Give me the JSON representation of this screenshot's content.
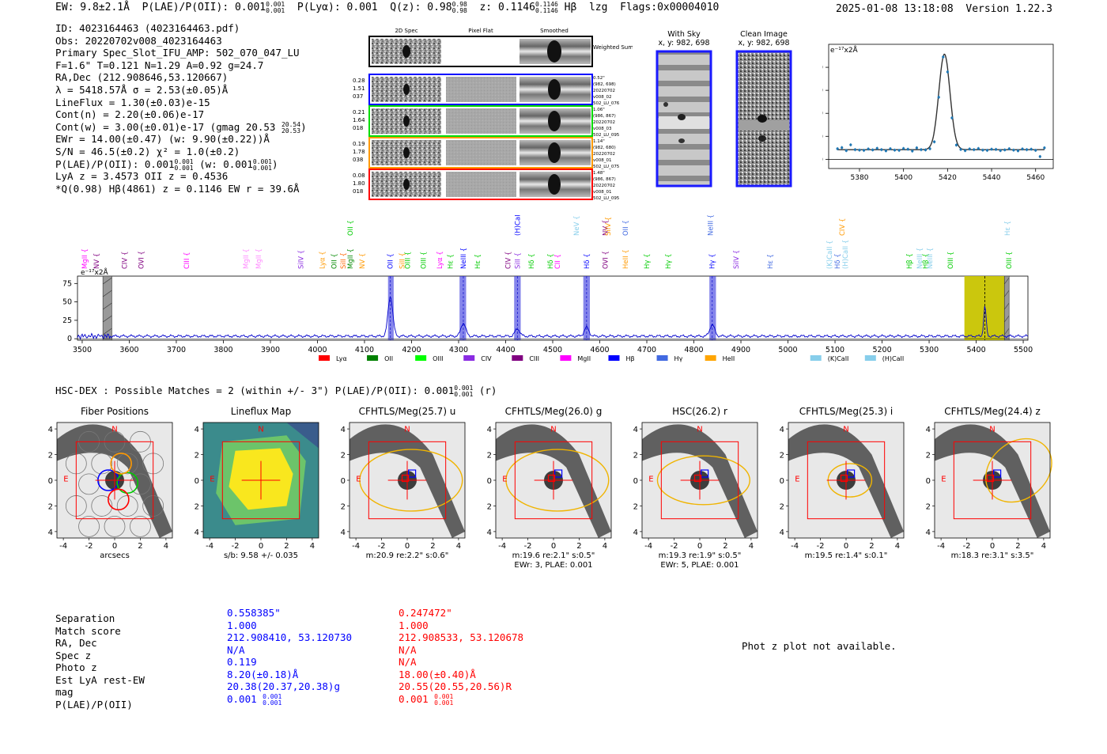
{
  "header": {
    "ew": "EW: 9.8±2.1Å",
    "plae_label": "P(LAE)/P(OII): 0.001",
    "plae_hi": "0.001",
    "plae_lo": "0.001",
    "plya": "P(Lyα): 0.001",
    "qz_label": "Q(z): 0.98",
    "qz_hi": "0.98",
    "qz_lo": "0.98",
    "z_label": "z: 0.1146",
    "z_hi": "0.1146",
    "z_lo": "0.1146",
    "line": "Hβ",
    "lzg": "lzg",
    "flags": "Flags:0x00004010",
    "datetime": "2025-01-08 13:18:08",
    "version": "Version 1.22.3"
  },
  "info": {
    "id": "ID: 4023164463 (4023164463.pdf)",
    "obs": "Obs: 20220702v008_4023164463",
    "primary": "Primary Spec_Slot_IFU_AMP: 502_070_047_LU",
    "fiber": "F=1.6\"  T=0.121  N=1.29  A=0.92  g=24.7",
    "radec": "RA,Dec (212.908646,53.120667)",
    "lambda": "λ = 5418.57Å  σ = 2.53(±0.05)Å",
    "lineflux": "LineFlux = 1.30(±0.03)e-15",
    "contn": "Cont(n) = 2.20(±0.06)e-17",
    "contw": "Cont(w) = 3.00(±0.01)e-17 (gmag 20.53",
    "contw_hi": "20.54",
    "contw_lo": "20.53",
    "ewr": "EWr = 14.00(±0.47) (w: 9.90(±0.22))Å",
    "sn": "S/N = 46.5(±0.2)  χ² = 1.0(±0.2)",
    "plae": "P(LAE)/P(OII): 0.001",
    "plae_hi": "0.001",
    "plae_lo": "0.001",
    "plae_w": "(w: 0.001",
    "plae_w_hi": "0.001",
    "plae_w_lo": "0.001",
    "lya_oii": "LyA z = 3.4573  OII z = 0.4536",
    "q": "*Q(0.98) Hβ(4861) z = 0.1146  EW r = 39.6Å"
  },
  "stamps": {
    "col_labels": [
      "2D Spec",
      "Pixel Flat",
      "Smoothed"
    ],
    "weighted": "Weighted Sum",
    "rows": [
      {
        "color": "#0000ff",
        "left": [
          "0.28",
          "1.51",
          "037"
        ],
        "right": [
          "0.52\"",
          "(982, 698)",
          "20220702",
          "v008_02",
          "502_LU_076"
        ]
      },
      {
        "color": "#00dd00",
        "left": [
          "0.21",
          "1.64",
          "018"
        ],
        "right": [
          "1.06\"",
          "(986, 867)",
          "20220702",
          "v008_03",
          "502_LU_095"
        ]
      },
      {
        "color": "#ff9900",
        "left": [
          "0.19",
          "1.78",
          "038"
        ],
        "right": [
          "1.14\"",
          "(982, 680)",
          "20220702",
          "v008_01",
          "502_LU_075"
        ]
      },
      {
        "color": "#ff0000",
        "left": [
          "0.08",
          "1.80",
          "018"
        ],
        "right": [
          "1.48\"",
          "(986, 867)",
          "20220702",
          "v008_01",
          "502_LU_095"
        ]
      }
    ]
  },
  "sky": {
    "with_sky": "With Sky",
    "with_sky_xy": "x, y: 982, 698",
    "clean": "Clean Image",
    "clean_xy": "x, y: 982, 698"
  },
  "fit_chart": {
    "unit": "e⁻¹⁷x2Å"
  },
  "chart_data": [
    {
      "type": "scatter",
      "title": "",
      "unit_label": "e⁻¹⁷x2Å",
      "xlim": [
        5366,
        5468
      ],
      "ylim": [
        -4,
        50
      ],
      "xticks": [
        5380,
        5400,
        5420,
        5440,
        5460
      ],
      "yticks": [
        0,
        10,
        20,
        30,
        40
      ],
      "points_x": [
        5370,
        5372,
        5374,
        5376,
        5378,
        5380,
        5382,
        5384,
        5386,
        5388,
        5390,
        5392,
        5394,
        5396,
        5398,
        5400,
        5402,
        5404,
        5406,
        5408,
        5410,
        5412,
        5414,
        5416,
        5418,
        5420,
        5422,
        5424,
        5426,
        5428,
        5430,
        5432,
        5434,
        5436,
        5438,
        5440,
        5442,
        5444,
        5446,
        5448,
        5450,
        5452,
        5454,
        5456,
        5458,
        5460,
        5462,
        5464
      ],
      "points_y": [
        4.6,
        5.1,
        3.8,
        6.3,
        4.2,
        4.0,
        3.9,
        4.5,
        4.1,
        4.8,
        4.2,
        3.7,
        4.6,
        4.0,
        3.9,
        4.7,
        4.4,
        3.6,
        5.0,
        4.2,
        4.1,
        4.6,
        7.6,
        27.0,
        44.5,
        38.0,
        18.0,
        6.2,
        4.3,
        3.8,
        4.5,
        4.2,
        4.7,
        4.0,
        3.9,
        4.4,
        4.3,
        3.8,
        4.1,
        4.6,
        4.0,
        3.7,
        4.5,
        4.2,
        4.4,
        3.9,
        1.2,
        5.0
      ],
      "fit_center": 5418.57,
      "fit_sigma": 2.53,
      "fit_peak": 41.5,
      "fit_baseline": 4.2
    },
    {
      "type": "line",
      "title": "",
      "unit_label": "e⁻¹⁷x2Å",
      "xlim": [
        3490,
        5510
      ],
      "ylim": [
        -2,
        85
      ],
      "xticks": [
        3500,
        3600,
        3700,
        3800,
        3900,
        4000,
        4100,
        4200,
        4300,
        4400,
        4500,
        4600,
        4700,
        4800,
        4900,
        5000,
        5100,
        5200,
        5300,
        5400,
        5500
      ],
      "yticks": [
        0,
        25,
        50,
        75
      ],
      "peaks": [
        {
          "x": 4155,
          "height": 54,
          "width": 5
        },
        {
          "x": 4310,
          "height": 18,
          "width": 5
        },
        {
          "x": 4425,
          "height": 10,
          "width": 5
        },
        {
          "x": 4572,
          "height": 12,
          "width": 5
        },
        {
          "x": 4839,
          "height": 16,
          "width": 5
        },
        {
          "x": 5418.57,
          "height": 41,
          "width": 2.6
        }
      ],
      "continuum": 3.5,
      "highlight_bands": [
        {
          "x0": 4150,
          "x1": 4162,
          "color": "#3333dd"
        },
        {
          "x0": 4302,
          "x1": 4316,
          "color": "#3333dd"
        },
        {
          "x0": 4418,
          "x1": 4432,
          "color": "#3333dd"
        },
        {
          "x0": 4565,
          "x1": 4579,
          "color": "#3333dd"
        },
        {
          "x0": 4833,
          "x1": 4847,
          "color": "#3333dd"
        },
        {
          "x0": 5375,
          "x1": 5460,
          "color": "#c8c400"
        }
      ],
      "masked_bands": [
        {
          "x0": 3544,
          "x1": 3563
        },
        {
          "x0": 5460,
          "x1": 5470
        }
      ],
      "line_labels": [
        {
          "x": 3505,
          "label": "MgII",
          "color": "#ff00ff",
          "row": 2
        },
        {
          "x": 3530,
          "label": "NV",
          "color": "#800080",
          "row": 2
        },
        {
          "x": 3625,
          "label": "OVI",
          "color": "#800080",
          "row": 2
        },
        {
          "x": 3590,
          "label": "CIV",
          "color": "#800080",
          "row": 2
        },
        {
          "x": 3722,
          "label": "CIII",
          "color": "#ff00ff",
          "row": 2
        },
        {
          "x": 3848,
          "label": "MgII",
          "color": "#ff88ff",
          "row": 2
        },
        {
          "x": 3875,
          "label": "MgII",
          "color": "#ff88ff",
          "row": 2
        },
        {
          "x": 3965,
          "label": "SiIV",
          "color": "#8a2be2",
          "row": 2
        },
        {
          "x": 4010,
          "label": "Lyα",
          "color": "#ff9900",
          "row": 2
        },
        {
          "x": 4035,
          "label": "OII",
          "color": "#008800",
          "row": 2
        },
        {
          "x": 4055,
          "label": "SiII",
          "color": "#ff6600",
          "row": 2
        },
        {
          "x": 4070,
          "label": "MgII",
          "color": "#008800",
          "row": 2
        },
        {
          "x": 4095,
          "label": "NV",
          "color": "#ff9900",
          "row": 2
        },
        {
          "x": 4070,
          "label": "OII",
          "color": "#00cc00",
          "row": 1
        },
        {
          "x": 4155,
          "label": "OII",
          "color": "#0000ff",
          "row": 2
        },
        {
          "x": 4180,
          "label": "SiII",
          "color": "#ff9900",
          "row": 2
        },
        {
          "x": 4192,
          "label": "OIII",
          "color": "#00cc00",
          "row": 2
        },
        {
          "x": 4225,
          "label": "OIII",
          "color": "#00cc00",
          "row": 2
        },
        {
          "x": 4260,
          "label": "Lyα",
          "color": "#ff00ff",
          "row": 2
        },
        {
          "x": 4282,
          "label": "Hε",
          "color": "#00cc00",
          "row": 2
        },
        {
          "x": 4310,
          "label": "NeIII",
          "color": "#0000ff",
          "row": 2
        },
        {
          "x": 4340,
          "label": "Hε",
          "color": "#00cc00",
          "row": 2
        },
        {
          "x": 4405,
          "label": "CIV",
          "color": "#800080",
          "row": 2
        },
        {
          "x": 4425,
          "label": "SiII",
          "color": "#8a2be2",
          "row": 2
        },
        {
          "x": 4455,
          "label": "Hδ",
          "color": "#00cc00",
          "row": 2
        },
        {
          "x": 4495,
          "label": "Hδ",
          "color": "#00cc00",
          "row": 2
        },
        {
          "x": 4510,
          "label": "CII",
          "color": "#ff00ff",
          "row": 2
        },
        {
          "x": 4572,
          "label": "Hδ",
          "color": "#0000ff",
          "row": 2
        },
        {
          "x": 4612,
          "label": "OVI",
          "color": "#800080",
          "row": 2
        },
        {
          "x": 4655,
          "label": "HeII",
          "color": "#ff9900",
          "row": 2
        },
        {
          "x": 4700,
          "label": "Hγ",
          "color": "#00cc00",
          "row": 2
        },
        {
          "x": 4745,
          "label": "Hγ",
          "color": "#00cc00",
          "row": 2
        },
        {
          "x": 4839,
          "label": "Hγ",
          "color": "#0000ff",
          "row": 2
        },
        {
          "x": 4890,
          "label": "SiIV",
          "color": "#8a2be2",
          "row": 2
        },
        {
          "x": 4962,
          "label": "Hε",
          "color": "#4169e1",
          "row": 2
        },
        {
          "x": 5088,
          "label": "(K)CaII",
          "color": "#87ceeb",
          "row": 2
        },
        {
          "x": 5122,
          "label": "(H)CaII",
          "color": "#87ceeb",
          "row": 2
        },
        {
          "x": 5105,
          "label": "Hδ",
          "color": "#4169e1",
          "row": 2
        },
        {
          "x": 5258,
          "label": "Hβ",
          "color": "#00cc00",
          "row": 2
        },
        {
          "x": 5280,
          "label": "NeIII",
          "color": "#87ceeb",
          "row": 2
        },
        {
          "x": 5292,
          "label": "Hβ",
          "color": "#00cc00",
          "row": 2
        },
        {
          "x": 5302,
          "label": "NeIII",
          "color": "#87ceeb",
          "row": 2
        },
        {
          "x": 5345,
          "label": "OIII",
          "color": "#00cc00",
          "row": 2
        },
        {
          "x": 5470,
          "label": "OIII",
          "color": "#00cc00",
          "row": 2
        },
        {
          "x": 4612,
          "label": "NV",
          "color": "#800080",
          "row": 1
        },
        {
          "x": 4550,
          "label": "NeV",
          "color": "#87ceeb",
          "row": 1
        },
        {
          "x": 4618,
          "label": "SiIV",
          "color": "#ff9900",
          "row": 1
        },
        {
          "x": 4655,
          "label": "OII",
          "color": "#4169e1",
          "row": 1
        },
        {
          "x": 4425,
          "label": "(H)CaII",
          "color": "#0000ff",
          "row": 1
        },
        {
          "x": 4835,
          "label": "NeIII",
          "color": "#4169e1",
          "row": 1
        },
        {
          "x": 5115,
          "label": "CIV",
          "color": "#ff9900",
          "row": 1
        },
        {
          "x": 5466,
          "label": "Hε",
          "color": "#87ceeb",
          "row": 1
        }
      ],
      "legend": [
        {
          "label": "Lyα",
          "color": "#ff0000"
        },
        {
          "label": "OII",
          "color": "#008000"
        },
        {
          "label": "OIII",
          "color": "#00ff00"
        },
        {
          "label": "CIV",
          "color": "#8a2be2"
        },
        {
          "label": "CIII",
          "color": "#800080"
        },
        {
          "label": "MgII",
          "color": "#ff00ff"
        },
        {
          "label": "Hβ",
          "color": "#0000ff"
        },
        {
          "label": "Hγ",
          "color": "#4169e1"
        },
        {
          "label": "HeII",
          "color": "#ffa500"
        },
        {
          "label": "(K)CaII",
          "color": "#87ceeb"
        },
        {
          "label": "(H)CaII",
          "color": "#87ceeb"
        }
      ]
    }
  ],
  "spec_chart": {
    "unit": "e⁻¹⁷x2Å"
  },
  "hsc": {
    "title": "HSC-DEX : Possible Matches = 2 (within +/- 3\")  P(LAE)/P(OII): 0.001",
    "title_hi": "0.001",
    "title_lo": "0.001",
    "title_tail": "(r)"
  },
  "cutouts": [
    {
      "title": "Fiber Positions",
      "caption1": "arcsecs",
      "caption2": ""
    },
    {
      "title": "Lineflux Map",
      "caption1": "s/b: 9.58 +/- 0.035",
      "caption2": ""
    },
    {
      "title": "CFHTLS/Meg(25.7) u",
      "caption1": "m:20.9  re:2.2\"  s:0.6\"",
      "caption2": ""
    },
    {
      "title": "CFHTLS/Meg(26.0) g",
      "caption1": "m:19.6  re:2.1\"  s:0.5\"",
      "caption2": "EWr: 3, PLAE: 0.001"
    },
    {
      "title": "HSC(26.2) r",
      "caption1": "m:19.3  re:1.9\"  s:0.5\"",
      "caption2": "EWr: 5, PLAE: 0.001"
    },
    {
      "title": "CFHTLS/Meg(25.3) i",
      "caption1": "m:19.5  re:1.4\"  s:0.1\"",
      "caption2": ""
    },
    {
      "title": "CFHTLS/Meg(24.4) z",
      "caption1": "m:18.3  re:3.1\"  s:3.5\"",
      "caption2": ""
    }
  ],
  "cutout_axis": {
    "ticks": [
      "-4",
      "-2",
      "0",
      "2",
      "4"
    ],
    "n_label": "N",
    "e_label": "E"
  },
  "matches": {
    "labels": [
      "Separation",
      "Match score",
      "RA, Dec",
      "Spec z",
      "Photo z",
      "Est LyA rest-EW",
      "mag",
      "P(LAE)/P(OII)"
    ],
    "col1": [
      "0.558385\"",
      "1.000",
      "212.908410, 53.120730",
      "N/A",
      "0.119",
      "8.20(±0.18)Å",
      "20.38(20.37,20.38)g",
      "0.001"
    ],
    "col1_plae_hi": "0.001",
    "col1_plae_lo": "0.001",
    "col2": [
      "0.247472\"",
      "1.000",
      "212.908533, 53.120678",
      "N/A",
      "N/A",
      "18.00(±0.40)Å",
      "20.55(20.55,20.56)R",
      "0.001"
    ],
    "col2_plae_hi": "0.001",
    "col2_plae_lo": "0.001",
    "col1_color": "#0000ff",
    "col2_color": "#ff0000"
  },
  "photz": {
    "text": "Phot z plot not available."
  }
}
